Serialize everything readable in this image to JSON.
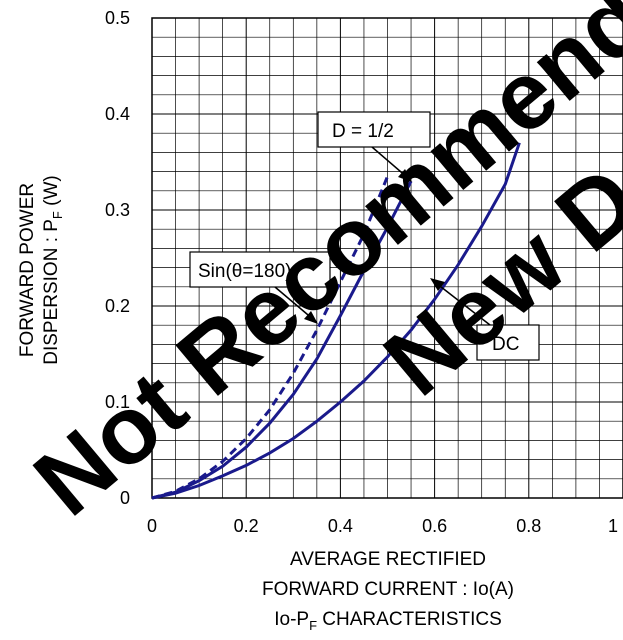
{
  "chart_data": {
    "type": "line",
    "title": "Io-PF CHARACTERISTICS",
    "title_parts": {
      "main": "Io-P",
      "sub": "F",
      "rest": " CHARACTERISTICS"
    },
    "xlabel_lines": [
      "AVERAGE RECTIFIED",
      "FORWARD CURRENT : Io(A)"
    ],
    "ylabel_lines": [
      "FORWARD POWER",
      "DISPERSION : P"
    ],
    "ylabel_sub": "F",
    "ylabel_tail": " (W)",
    "xlim": [
      0,
      1
    ],
    "ylim": [
      0,
      0.5
    ],
    "x_ticks": [
      "0",
      "0.2",
      "0.4",
      "0.6",
      "0.8",
      "1"
    ],
    "y_ticks": [
      "0",
      "0.1",
      "0.2",
      "0.3",
      "0.4",
      "0.5"
    ],
    "grid": true,
    "series": [
      {
        "name": "D = 1/2",
        "style": "dashed",
        "color": "#1a1a8c",
        "points": [
          [
            0,
            0
          ],
          [
            0.05,
            0.007
          ],
          [
            0.1,
            0.02
          ],
          [
            0.15,
            0.038
          ],
          [
            0.2,
            0.062
          ],
          [
            0.25,
            0.092
          ],
          [
            0.3,
            0.13
          ],
          [
            0.35,
            0.175
          ],
          [
            0.4,
            0.225
          ],
          [
            0.45,
            0.275
          ],
          [
            0.5,
            0.335
          ]
        ]
      },
      {
        "name": "Sin(θ=180)",
        "style": "solid",
        "color": "#1a1a8c",
        "points": [
          [
            0,
            0
          ],
          [
            0.05,
            0.006
          ],
          [
            0.1,
            0.018
          ],
          [
            0.15,
            0.033
          ],
          [
            0.2,
            0.053
          ],
          [
            0.25,
            0.078
          ],
          [
            0.3,
            0.108
          ],
          [
            0.35,
            0.145
          ],
          [
            0.4,
            0.19
          ],
          [
            0.45,
            0.237
          ],
          [
            0.5,
            0.282
          ],
          [
            0.55,
            0.33
          ]
        ]
      },
      {
        "name": "DC",
        "style": "solid",
        "color": "#1a1a8c",
        "points": [
          [
            0,
            0
          ],
          [
            0.05,
            0.005
          ],
          [
            0.1,
            0.013
          ],
          [
            0.15,
            0.023
          ],
          [
            0.2,
            0.034
          ],
          [
            0.25,
            0.047
          ],
          [
            0.3,
            0.062
          ],
          [
            0.35,
            0.08
          ],
          [
            0.4,
            0.1
          ],
          [
            0.45,
            0.122
          ],
          [
            0.5,
            0.147
          ],
          [
            0.55,
            0.175
          ],
          [
            0.6,
            0.207
          ],
          [
            0.65,
            0.243
          ],
          [
            0.7,
            0.283
          ],
          [
            0.75,
            0.327
          ],
          [
            0.78,
            0.37
          ]
        ]
      }
    ],
    "annotations": [
      {
        "text": "D = 1/2",
        "target": [
          0.5,
          0.335
        ]
      },
      {
        "text": "Sin(θ=180)",
        "target": [
          0.35,
          0.17
        ]
      },
      {
        "text": "DC",
        "target": [
          0.57,
          0.22
        ]
      }
    ]
  },
  "watermark": {
    "word1": "Not Recommended for",
    "word2": "New Designs"
  }
}
